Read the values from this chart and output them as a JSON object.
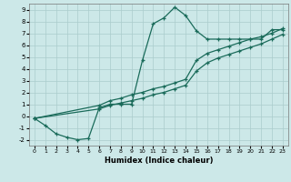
{
  "xlabel": "Humidex (Indice chaleur)",
  "xlim": [
    -0.5,
    23.5
  ],
  "ylim": [
    -2.5,
    9.5
  ],
  "xticks": [
    0,
    1,
    2,
    3,
    4,
    5,
    6,
    7,
    8,
    9,
    10,
    11,
    12,
    13,
    14,
    15,
    16,
    17,
    18,
    19,
    20,
    21,
    22,
    23
  ],
  "yticks": [
    -2,
    -1,
    0,
    1,
    2,
    3,
    4,
    5,
    6,
    7,
    8,
    9
  ],
  "bg_color": "#cce8e8",
  "line_color": "#1a6b5a",
  "grid_color": "#aacccc",
  "line1_x": [
    0,
    1,
    2,
    3,
    4,
    5,
    6,
    7,
    8,
    9,
    10,
    11,
    12,
    13,
    14,
    15,
    16,
    17,
    18,
    19,
    20,
    21,
    22,
    23
  ],
  "line1_y": [
    -0.2,
    -0.8,
    -1.5,
    -1.8,
    -2.0,
    -1.9,
    0.7,
    1.0,
    1.0,
    1.0,
    4.7,
    7.8,
    8.3,
    9.2,
    8.5,
    7.2,
    6.5,
    6.5,
    6.5,
    6.5,
    6.5,
    6.5,
    7.3,
    7.3
  ],
  "line2_x": [
    0,
    6,
    7,
    8,
    9,
    10,
    11,
    12,
    13,
    14,
    15,
    16,
    17,
    18,
    19,
    20,
    21,
    22,
    23
  ],
  "line2_y": [
    -0.2,
    0.9,
    1.3,
    1.5,
    1.8,
    2.0,
    2.3,
    2.5,
    2.8,
    3.1,
    4.7,
    5.3,
    5.6,
    5.9,
    6.2,
    6.5,
    6.7,
    7.0,
    7.4
  ],
  "line3_x": [
    0,
    6,
    7,
    8,
    9,
    10,
    11,
    12,
    13,
    14,
    15,
    16,
    17,
    18,
    19,
    20,
    21,
    22,
    23
  ],
  "line3_y": [
    -0.2,
    0.6,
    0.9,
    1.1,
    1.3,
    1.5,
    1.8,
    2.0,
    2.3,
    2.6,
    3.8,
    4.5,
    4.9,
    5.2,
    5.5,
    5.8,
    6.1,
    6.5,
    6.9
  ]
}
